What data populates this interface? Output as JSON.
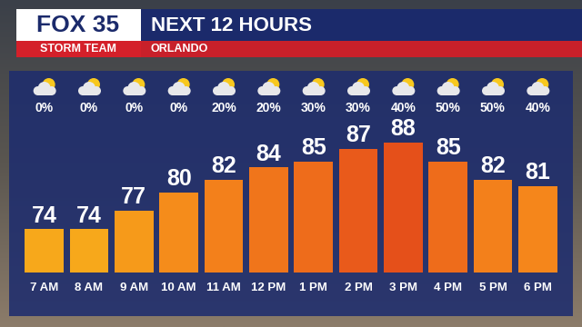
{
  "chart_data": {
    "type": "bar",
    "brand": "FOX 35",
    "brand_sub": "STORM TEAM",
    "title": "NEXT 12 HOURS",
    "subtitle": "ORLANDO",
    "categories": [
      "7 AM",
      "8 AM",
      "9 AM",
      "10 AM",
      "11 AM",
      "12 PM",
      "1 PM",
      "2 PM",
      "3 PM",
      "4 PM",
      "5 PM",
      "6 PM"
    ],
    "values": [
      74,
      74,
      77,
      80,
      82,
      84,
      85,
      87,
      88,
      85,
      82,
      81
    ],
    "colors": [
      "#f7a81b",
      "#f7a81b",
      "#f69a1a",
      "#f58c1b",
      "#f3801b",
      "#f0751b",
      "#ee6c1b",
      "#e95a1b",
      "#e5501a",
      "#ee6c1b",
      "#f3801b",
      "#f5861b"
    ],
    "data_labels": true,
    "ylim": [
      67,
      92
    ],
    "tick_labels": "x",
    "grid": false,
    "precipitation_chance": {
      "values": [
        0,
        0,
        0,
        0,
        20,
        20,
        30,
        30,
        40,
        50,
        50,
        40
      ],
      "value_labels": [
        "0%",
        "0%",
        "0%",
        "0%",
        "20%",
        "20%",
        "30%",
        "30%",
        "40%",
        "50%",
        "50%",
        "40%"
      ]
    }
  }
}
